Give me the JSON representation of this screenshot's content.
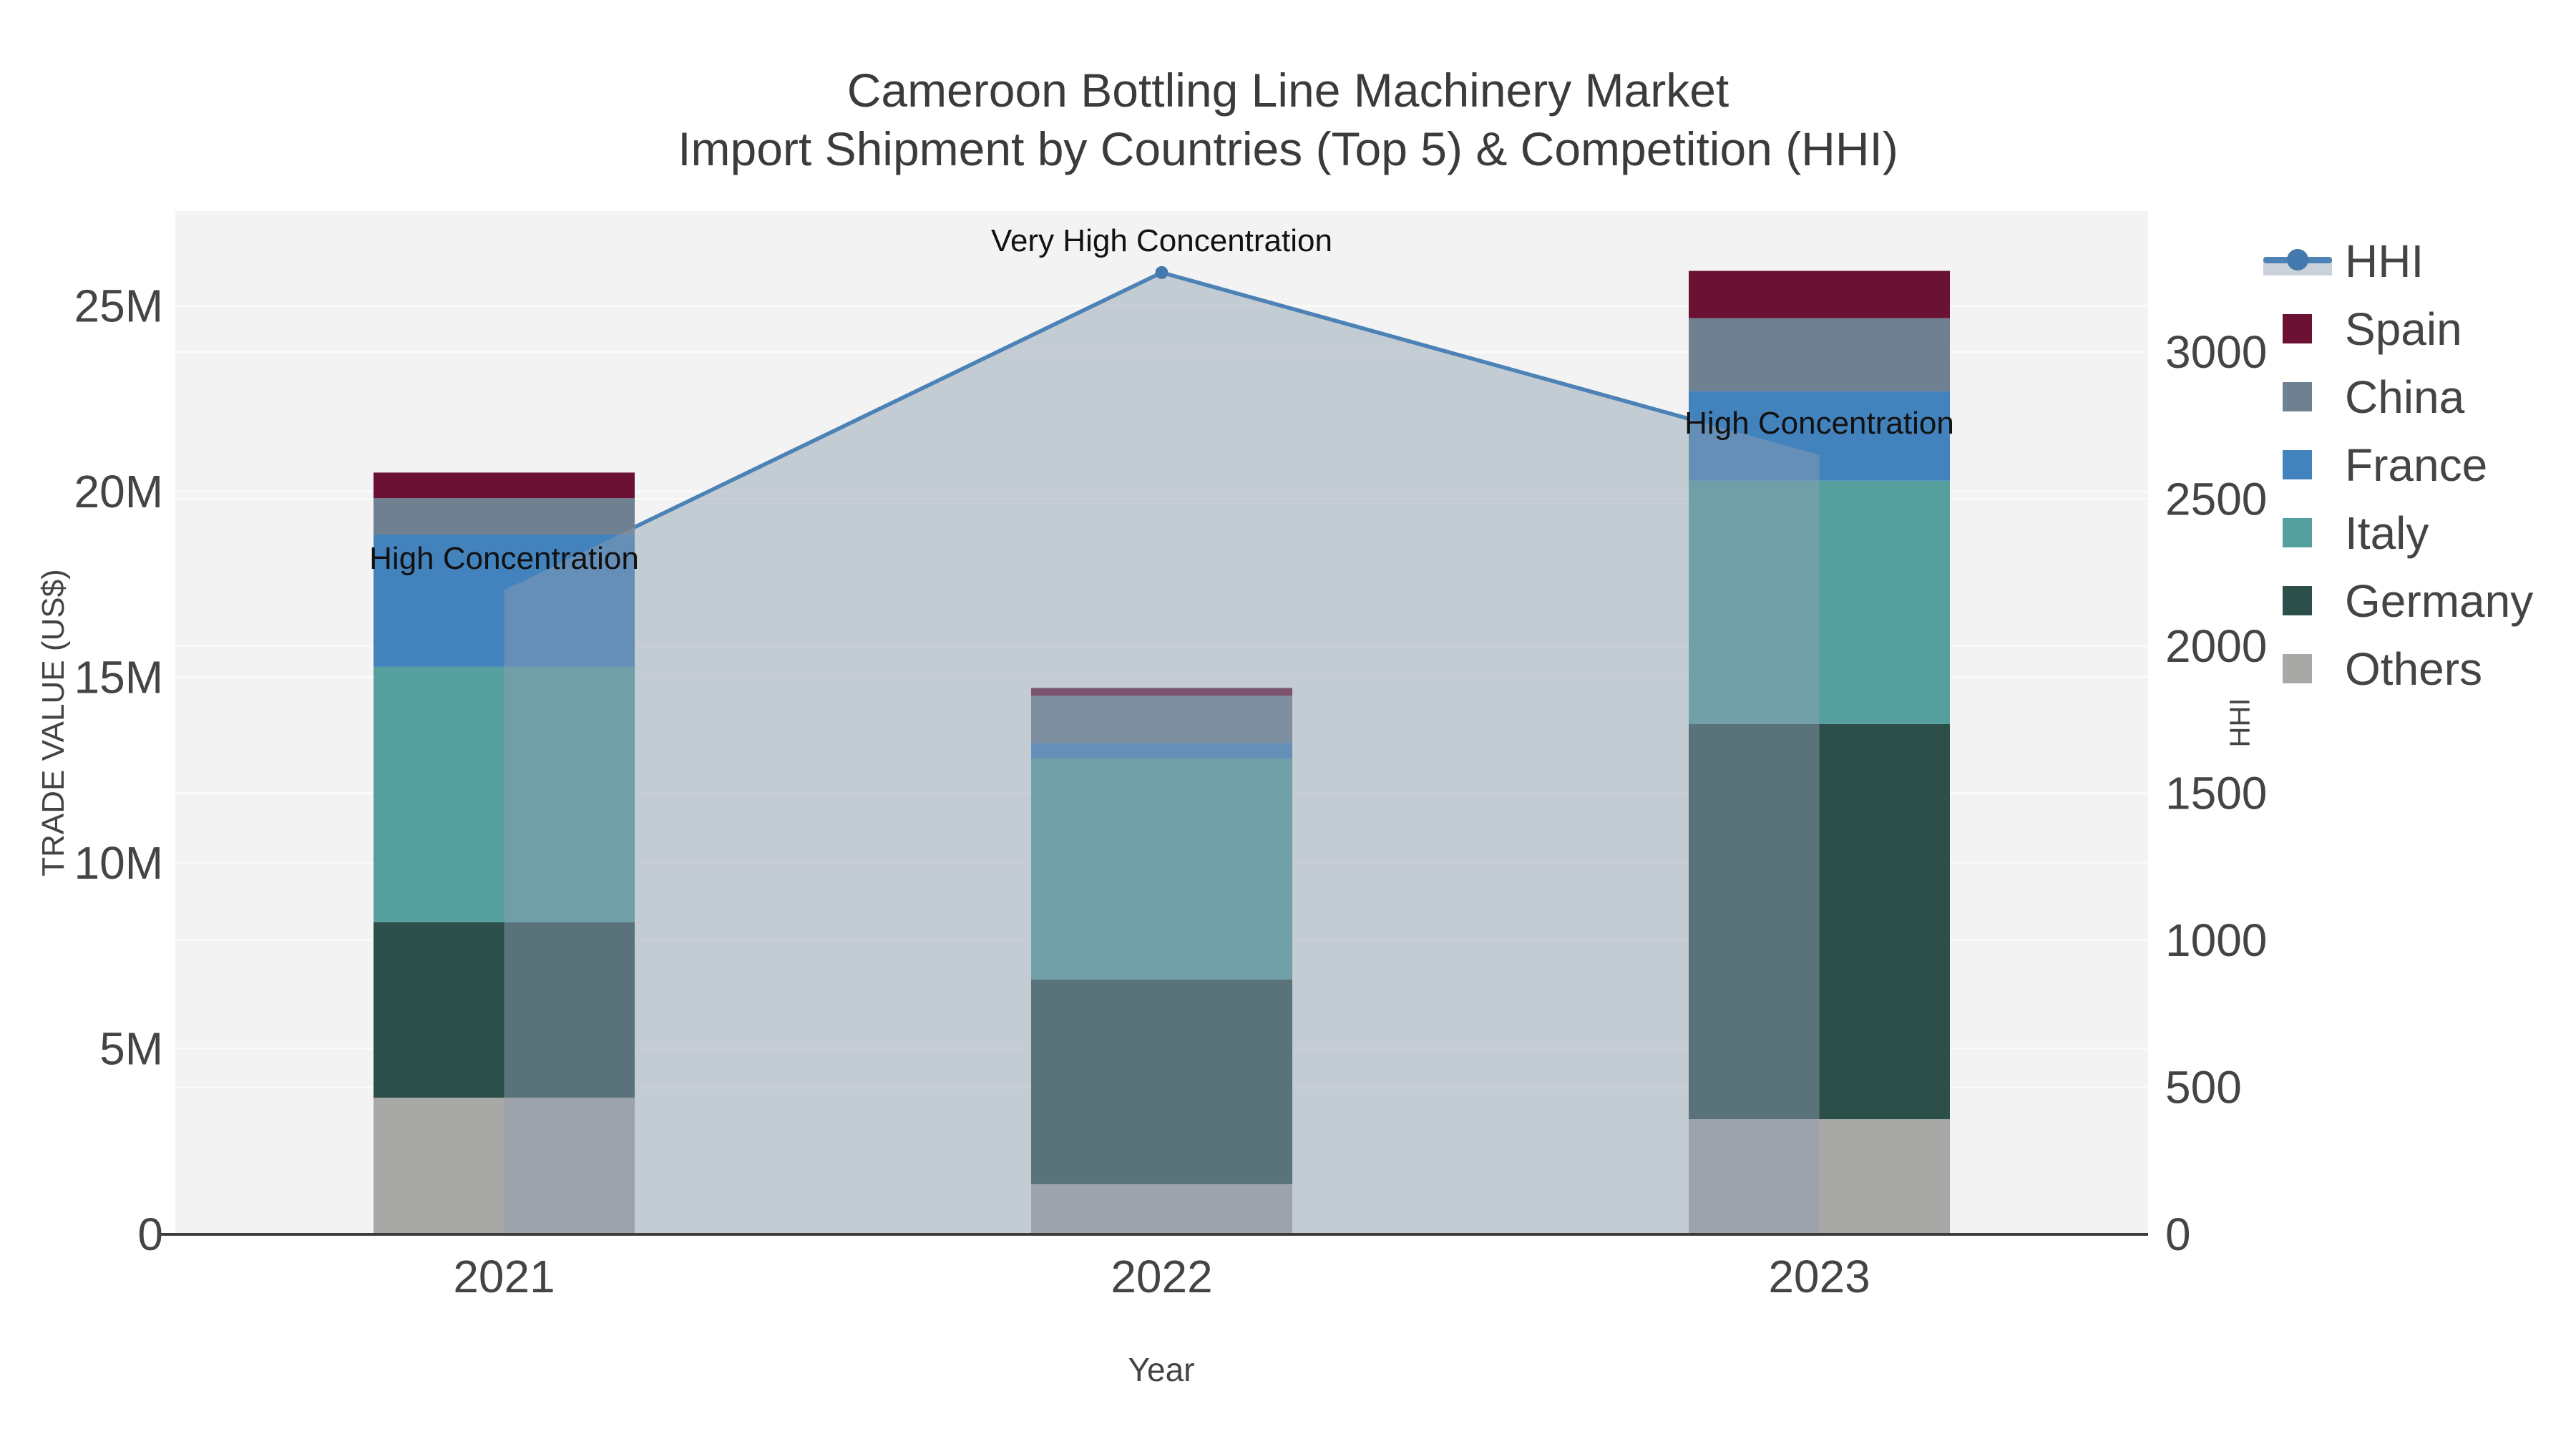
{
  "title": {
    "line1": "Cameroon Bottling Line Machinery Market",
    "line2": "Import Shipment by Countries (Top 5) & Competition (HHI)"
  },
  "axes": {
    "x": {
      "title": "Year",
      "tick_labels": [
        "2021",
        "2022",
        "2023"
      ]
    },
    "y_left": {
      "title": "TRADE VALUE (US$)",
      "tick_labels": [
        "0",
        "5M",
        "10M",
        "15M",
        "20M",
        "25M"
      ],
      "tick_values_m": [
        0,
        5,
        10,
        15,
        20,
        25
      ],
      "max_value_m": 27.55
    },
    "y_right": {
      "title": "HHI",
      "tick_labels": [
        "0",
        "500",
        "1000",
        "1500",
        "2000",
        "2500",
        "3000"
      ],
      "tick_values": [
        0,
        500,
        1000,
        1500,
        2000,
        2500,
        3000
      ],
      "max_value": 3479
    }
  },
  "chart_data": {
    "type": "bar",
    "subtype": "stacked-bar-with-line",
    "title": "Cameroon Bottling Line Machinery Market — Import Shipment by Countries (Top 5) & Competition (HHI)",
    "categories": [
      "2021",
      "2022",
      "2023"
    ],
    "values_unit": "million US$",
    "series": [
      {
        "name": "Others",
        "color": "#A8A8A7",
        "values": [
          3.68,
          1.35,
          3.1
        ]
      },
      {
        "name": "Germany",
        "color": "#2C4F4A",
        "values": [
          4.72,
          5.51,
          10.64
        ]
      },
      {
        "name": "Italy",
        "color": "#55A09F",
        "values": [
          6.88,
          5.95,
          6.55
        ]
      },
      {
        "name": "France",
        "color": "#4283BE",
        "values": [
          3.56,
          0.42,
          2.41
        ]
      },
      {
        "name": "China",
        "color": "#6F8090",
        "values": [
          0.98,
          1.27,
          1.97
        ]
      },
      {
        "name": "Spain",
        "color": "#6B1134",
        "values": [
          0.69,
          0.21,
          1.27
        ]
      }
    ],
    "totals_m": [
      20.51,
      14.71,
      25.94
    ],
    "line_series": {
      "name": "HHI",
      "values": [
        2190,
        3270,
        2650
      ],
      "axis": "right",
      "color": "#4C82B6",
      "marker_color": "#4379AD",
      "area_fill": "rgba(142,158,177,0.47)"
    },
    "annotations": [
      {
        "category": "2021",
        "text": "High Concentration"
      },
      {
        "category": "2022",
        "text": "Very High Concentration"
      },
      {
        "category": "2023",
        "text": "High Concentration"
      }
    ],
    "legend_position": "right",
    "grid": true,
    "plot_bg": "#F2F3F2",
    "grid_color": "#FAFAFA",
    "axis_line_color": "#3C3C3C",
    "tick_label_color": "#444444",
    "annotation_color": "#111111"
  },
  "legend": {
    "items": [
      {
        "label": "HHI",
        "type": "line"
      },
      {
        "label": "Spain",
        "type": "swatch",
        "color": "#6B1134"
      },
      {
        "label": "China",
        "type": "swatch",
        "color": "#6F8090"
      },
      {
        "label": "France",
        "type": "swatch",
        "color": "#4283BE"
      },
      {
        "label": "Italy",
        "type": "swatch",
        "color": "#55A09F"
      },
      {
        "label": "Germany",
        "type": "swatch",
        "color": "#2C4F4A"
      },
      {
        "label": "Others",
        "type": "swatch",
        "color": "#A8A8A7"
      }
    ]
  }
}
